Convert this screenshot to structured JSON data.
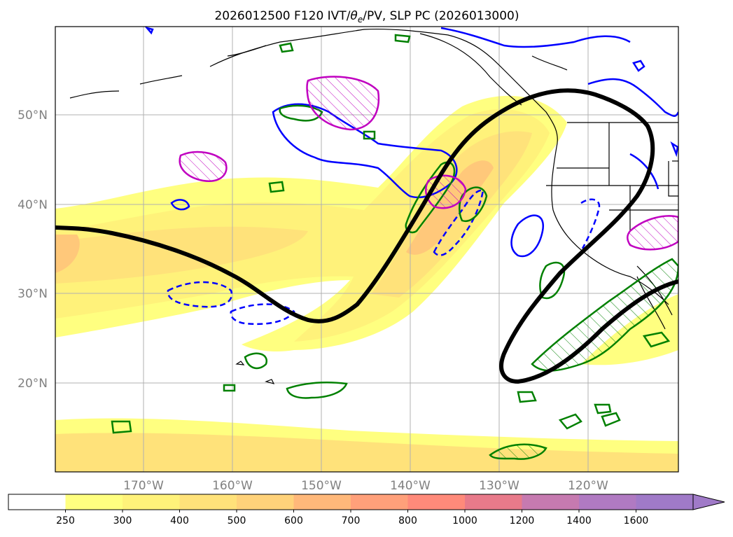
{
  "title": {
    "prefix": "2026012500 F120 IVT/",
    "theta_symbol": "θ",
    "theta_sub": "e",
    "suffix": "/PV, SLP PC (2026013000)"
  },
  "lat_labels": [
    "50°N",
    "40°N",
    "30°N",
    "20°N"
  ],
  "lon_labels": [
    "170°W",
    "160°W",
    "150°W",
    "140°W",
    "130°W",
    "120°W"
  ],
  "colorbar": {
    "ticks": [
      "250",
      "300",
      "400",
      "500",
      "600",
      "700",
      "800",
      "1000",
      "1200",
      "1400",
      "1600"
    ],
    "colors": [
      "#ffffff",
      "#ffff80",
      "#fff27a",
      "#ffe27a",
      "#ffd27a",
      "#ffb87a",
      "#ffa07a",
      "#ff8a7a",
      "#e87a8a",
      "#c67ab0",
      "#b07ac2",
      "#a07ac8"
    ]
  },
  "colors": {
    "ivt_light": "#ffff80",
    "ivt_mid": "#ffe27a",
    "ivt_core": "#ffc87a",
    "pv_contour": "#0000ff",
    "theta_contour": "#008000",
    "hatched_contour": "#c000c0",
    "slp_pc": "#000000",
    "coastline": "#000000",
    "grid": "#b0b0b0"
  }
}
